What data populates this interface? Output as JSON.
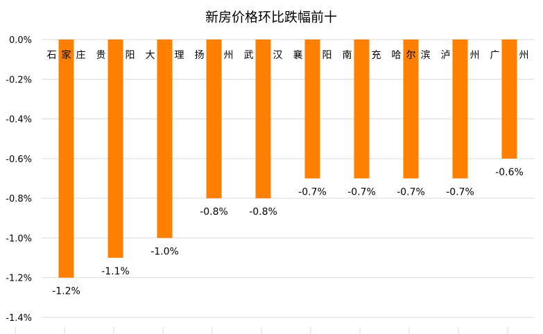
{
  "chart_data": {
    "type": "bar",
    "title": "新房价格环比跌幅前十",
    "categories": [
      "石家庄",
      "贵 阳",
      "大 理",
      "扬 州",
      "武 汉",
      "襄 阳",
      "南 充",
      "哈尔滨",
      "泸 州",
      "广 州"
    ],
    "values": [
      -1.2,
      -1.1,
      -1.0,
      -0.8,
      -0.8,
      -0.7,
      -0.7,
      -0.7,
      -0.7,
      -0.6
    ],
    "data_labels": [
      "-1.2%",
      "-1.1%",
      "-1.0%",
      "-0.8%",
      "-0.8%",
      "-0.7%",
      "-0.7%",
      "-0.7%",
      "-0.7%",
      "-0.6%"
    ],
    "yticks": [
      "0.0%",
      "-0.2%",
      "-0.4%",
      "-0.6%",
      "-0.8%",
      "-1.0%",
      "-1.2%",
      "-1.4%"
    ],
    "ytick_values": [
      0,
      -0.2,
      -0.4,
      -0.6,
      -0.8,
      -1.0,
      -1.2,
      -1.4
    ],
    "ylim": [
      -1.4,
      0
    ],
    "grid": true,
    "bar_color": "#FF7F00"
  }
}
